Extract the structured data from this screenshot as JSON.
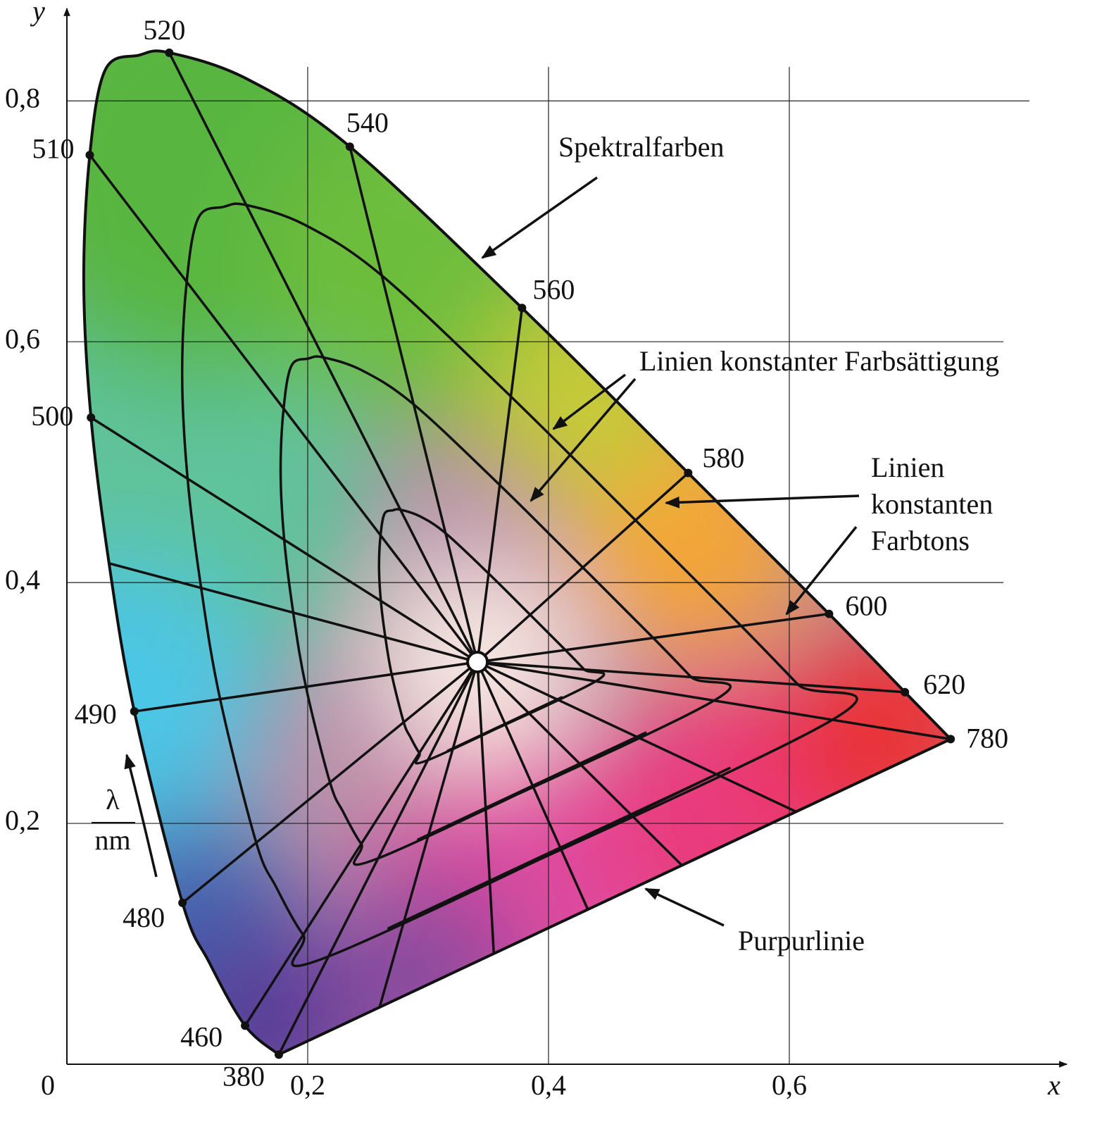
{
  "chart_data": {
    "type": "chromaticity",
    "x_label": "x",
    "y_label": "y",
    "xlim": [
      0,
      0.8275
    ],
    "ylim": [
      0,
      0.875
    ],
    "xticks": [
      0,
      {
        "value": 0.2,
        "label": "0,2"
      },
      {
        "value": 0.4,
        "label": "0,4"
      },
      {
        "value": 0.6,
        "label": "0,6"
      }
    ],
    "yticks": [
      {
        "value": 0.2,
        "label": "0,2"
      },
      {
        "value": 0.4,
        "label": "0,4"
      },
      {
        "value": 0.6,
        "label": "0,6"
      },
      {
        "value": 0.8,
        "label": "0,8"
      }
    ],
    "grid": true,
    "locus": {
      "x": [
        0.176,
        0.148,
        0.118,
        0.096,
        0.056,
        0.035,
        0.02,
        0.014,
        0.019,
        0.032,
        0.06,
        0.085,
        0.15,
        0.235,
        0.378,
        0.516,
        0.633,
        0.696,
        0.734
      ],
      "y": [
        0.008,
        0.032,
        0.085,
        0.134,
        0.293,
        0.416,
        0.537,
        0.65,
        0.755,
        0.826,
        0.838,
        0.84,
        0.818,
        0.762,
        0.628,
        0.491,
        0.374,
        0.309,
        0.27
      ],
      "labels": [
        "380",
        "460",
        null,
        "480",
        "490",
        null,
        "500",
        null,
        "510",
        null,
        null,
        "520",
        null,
        "540",
        "560",
        "580",
        "600",
        "620",
        "780"
      ]
    },
    "white_point": [
      0.341,
      0.334
    ],
    "annotations": {
      "spectral": "Spektralfarben",
      "saturation": "Linien konstanter Farbsättigung",
      "hue": [
        "Linien",
        "konstanten",
        "Farbtons"
      ],
      "purple": "Purpurlinie",
      "wavelength": {
        "symbol": "λ",
        "unit": "nm"
      }
    }
  }
}
